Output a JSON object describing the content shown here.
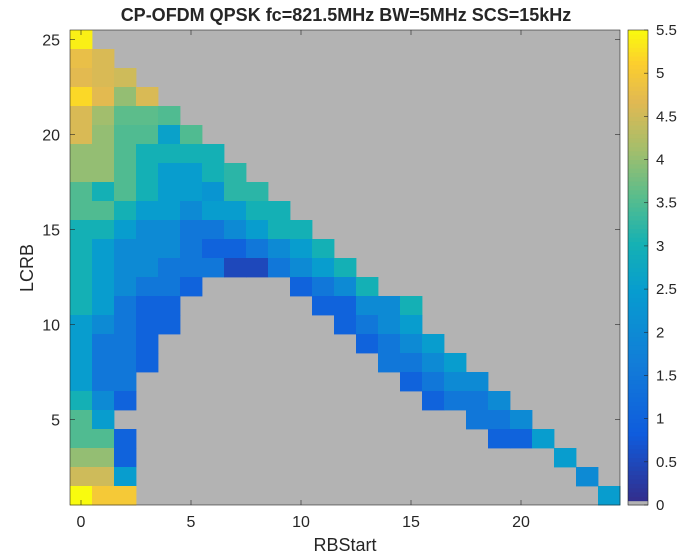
{
  "chart_data": {
    "type": "heatmap",
    "title": "CP-OFDM QPSK fc=821.5MHz BW=5MHz SCS=15kHz",
    "xlabel": "RBStart",
    "ylabel": "LCRB",
    "x_ticks": [
      0,
      5,
      10,
      15,
      20
    ],
    "y_ticks": [
      5,
      10,
      15,
      20,
      25
    ],
    "x_range": [
      0,
      24
    ],
    "y_range": [
      1,
      25
    ],
    "colorbar": {
      "min": 0,
      "max": 5.5,
      "ticks": [
        0,
        0.5,
        1,
        1.5,
        2,
        2.5,
        3,
        3.5,
        4,
        4.5,
        5,
        5.5
      ],
      "colormap": "parula",
      "zero_color": "#b3b3b3"
    },
    "rows": [
      {
        "lcrb": 25,
        "values": [
          5.4
        ]
      },
      {
        "lcrb": 24,
        "values": [
          4.8,
          4.6
        ]
      },
      {
        "lcrb": 23,
        "values": [
          4.7,
          4.6,
          4.5
        ]
      },
      {
        "lcrb": 22,
        "values": [
          5.2,
          4.7,
          4.0,
          4.6
        ]
      },
      {
        "lcrb": 21,
        "values": [
          4.6,
          4.1,
          3.6,
          3.6,
          3.5
        ]
      },
      {
        "lcrb": 20,
        "values": [
          4.6,
          4.0,
          3.5,
          3.5,
          2.6,
          3.5
        ]
      },
      {
        "lcrb": 19,
        "values": [
          4.0,
          4.0,
          3.5,
          3.0,
          3.0,
          3.0,
          3.0
        ]
      },
      {
        "lcrb": 18,
        "values": [
          4.0,
          4.0,
          3.5,
          3.0,
          2.5,
          2.5,
          3.0,
          3.2
        ]
      },
      {
        "lcrb": 17,
        "values": [
          3.5,
          3.0,
          3.5,
          3.0,
          2.5,
          2.5,
          2.3,
          3.2,
          3.2
        ]
      },
      {
        "lcrb": 16,
        "values": [
          3.5,
          3.5,
          3.0,
          2.5,
          2.5,
          2.0,
          2.5,
          2.5,
          3.0,
          3.0
        ]
      },
      {
        "lcrb": 15,
        "values": [
          3.0,
          3.0,
          2.5,
          2.0,
          2.0,
          1.5,
          1.5,
          2.0,
          2.5,
          3.0,
          3.0
        ]
      },
      {
        "lcrb": 14,
        "values": [
          3.0,
          2.5,
          2.0,
          2.0,
          2.0,
          1.5,
          1.0,
          1.0,
          1.5,
          2.0,
          2.5,
          3.0
        ]
      },
      {
        "lcrb": 13,
        "values": [
          3.0,
          2.5,
          2.0,
          2.0,
          1.5,
          1.5,
          1.5,
          0.5,
          0.5,
          1.5,
          2.0,
          2.5,
          3.0
        ]
      },
      {
        "lcrb": 12,
        "values": [
          3.0,
          2.5,
          2.0,
          1.5,
          1.5,
          1.0,
          0,
          0,
          0,
          0,
          1.0,
          1.5,
          2.0,
          3.0
        ]
      },
      {
        "lcrb": 11,
        "values": [
          3.0,
          2.5,
          1.5,
          1.0,
          1.0,
          0,
          0,
          0,
          0,
          0,
          0,
          1.0,
          1.0,
          2.0,
          2.0,
          3.0
        ]
      },
      {
        "lcrb": 10,
        "values": [
          2.5,
          2.0,
          1.5,
          1.0,
          1.0,
          0,
          0,
          0,
          0,
          0,
          0,
          0,
          1.0,
          1.5,
          2.0,
          2.5
        ]
      },
      {
        "lcrb": 9,
        "values": [
          2.5,
          1.5,
          1.5,
          1.0,
          0,
          0,
          0,
          0,
          0,
          0,
          0,
          0,
          0,
          1.0,
          1.5,
          2.0,
          2.5
        ]
      },
      {
        "lcrb": 8,
        "values": [
          2.5,
          1.5,
          1.5,
          1.0,
          0,
          0,
          0,
          0,
          0,
          0,
          0,
          0,
          0,
          0,
          1.5,
          1.5,
          2.0,
          2.5
        ]
      },
      {
        "lcrb": 7,
        "values": [
          2.5,
          1.5,
          1.5,
          0,
          0,
          0,
          0,
          0,
          0,
          0,
          0,
          0,
          0,
          0,
          0,
          1.0,
          1.5,
          2.0,
          2.0
        ]
      },
      {
        "lcrb": 6,
        "values": [
          3.0,
          2.0,
          1.0,
          0,
          0,
          0,
          0,
          0,
          0,
          0,
          0,
          0,
          0,
          0,
          0,
          0,
          1.0,
          1.5,
          1.5,
          2.0
        ]
      },
      {
        "lcrb": 5,
        "values": [
          3.5,
          2.5,
          0,
          0,
          0,
          0,
          0,
          0,
          0,
          0,
          0,
          0,
          0,
          0,
          0,
          0,
          0,
          0,
          1.5,
          1.5,
          2.0
        ]
      },
      {
        "lcrb": 4,
        "values": [
          3.5,
          3.5,
          1.0,
          0,
          0,
          0,
          0,
          0,
          0,
          0,
          0,
          0,
          0,
          0,
          0,
          0,
          0,
          0,
          0,
          1.0,
          1.0,
          2.5
        ]
      },
      {
        "lcrb": 3,
        "values": [
          4.0,
          4.0,
          1.0,
          0,
          0,
          0,
          0,
          0,
          0,
          0,
          0,
          0,
          0,
          0,
          0,
          0,
          0,
          0,
          0,
          0,
          0,
          0,
          2.5
        ]
      },
      {
        "lcrb": 2,
        "values": [
          4.5,
          4.5,
          2.5,
          0,
          0,
          0,
          0,
          0,
          0,
          0,
          0,
          0,
          0,
          0,
          0,
          0,
          0,
          0,
          0,
          0,
          0,
          0,
          0,
          2.0
        ]
      },
      {
        "lcrb": 1,
        "values": [
          5.5,
          5.0,
          5.0,
          0,
          0,
          0,
          0,
          0,
          0,
          0,
          0,
          0,
          0,
          0,
          0,
          0,
          0,
          0,
          0,
          0,
          0,
          0,
          0,
          0,
          2.5
        ]
      }
    ]
  }
}
